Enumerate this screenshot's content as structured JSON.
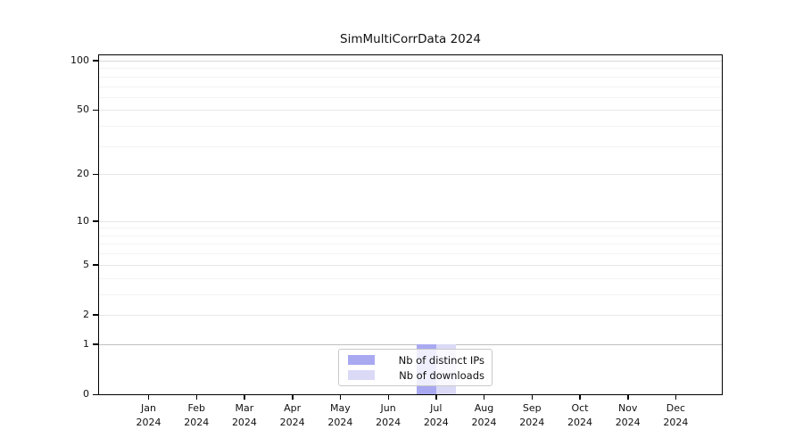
{
  "figure": {
    "title": "SimMultiCorrData 2024"
  },
  "chart_data": {
    "type": "bar",
    "title": "SimMultiCorrData 2024",
    "xlabel": "",
    "ylabel": "",
    "categories": [
      "Jan 2024",
      "Feb 2024",
      "Mar 2024",
      "Apr 2024",
      "May 2024",
      "Jun 2024",
      "Jul 2024",
      "Aug 2024",
      "Sep 2024",
      "Oct 2024",
      "Nov 2024",
      "Dec 2024"
    ],
    "series": [
      {
        "name": "Nb of distinct IPs",
        "color": "#a9a9f1",
        "values": [
          0,
          0,
          0,
          0,
          0,
          0,
          1,
          0,
          0,
          0,
          0,
          0
        ]
      },
      {
        "name": "Nb of downloads",
        "color": "#dadaf7",
        "values": [
          0,
          0,
          0,
          0,
          0,
          0,
          1,
          0,
          0,
          0,
          0,
          0
        ]
      }
    ],
    "yscale": "log1p",
    "ylim": [
      0,
      100
    ],
    "yticks": [
      0,
      1,
      2,
      5,
      10,
      20,
      50,
      100
    ],
    "yticks_minor": [
      3,
      4,
      6,
      7,
      8,
      9,
      30,
      40,
      60,
      70,
      80,
      90
    ],
    "grid": "horizontal",
    "legend_position": "lower center",
    "legend_entries": [
      "Nb of distinct IPs",
      "Nb of downloads"
    ]
  }
}
